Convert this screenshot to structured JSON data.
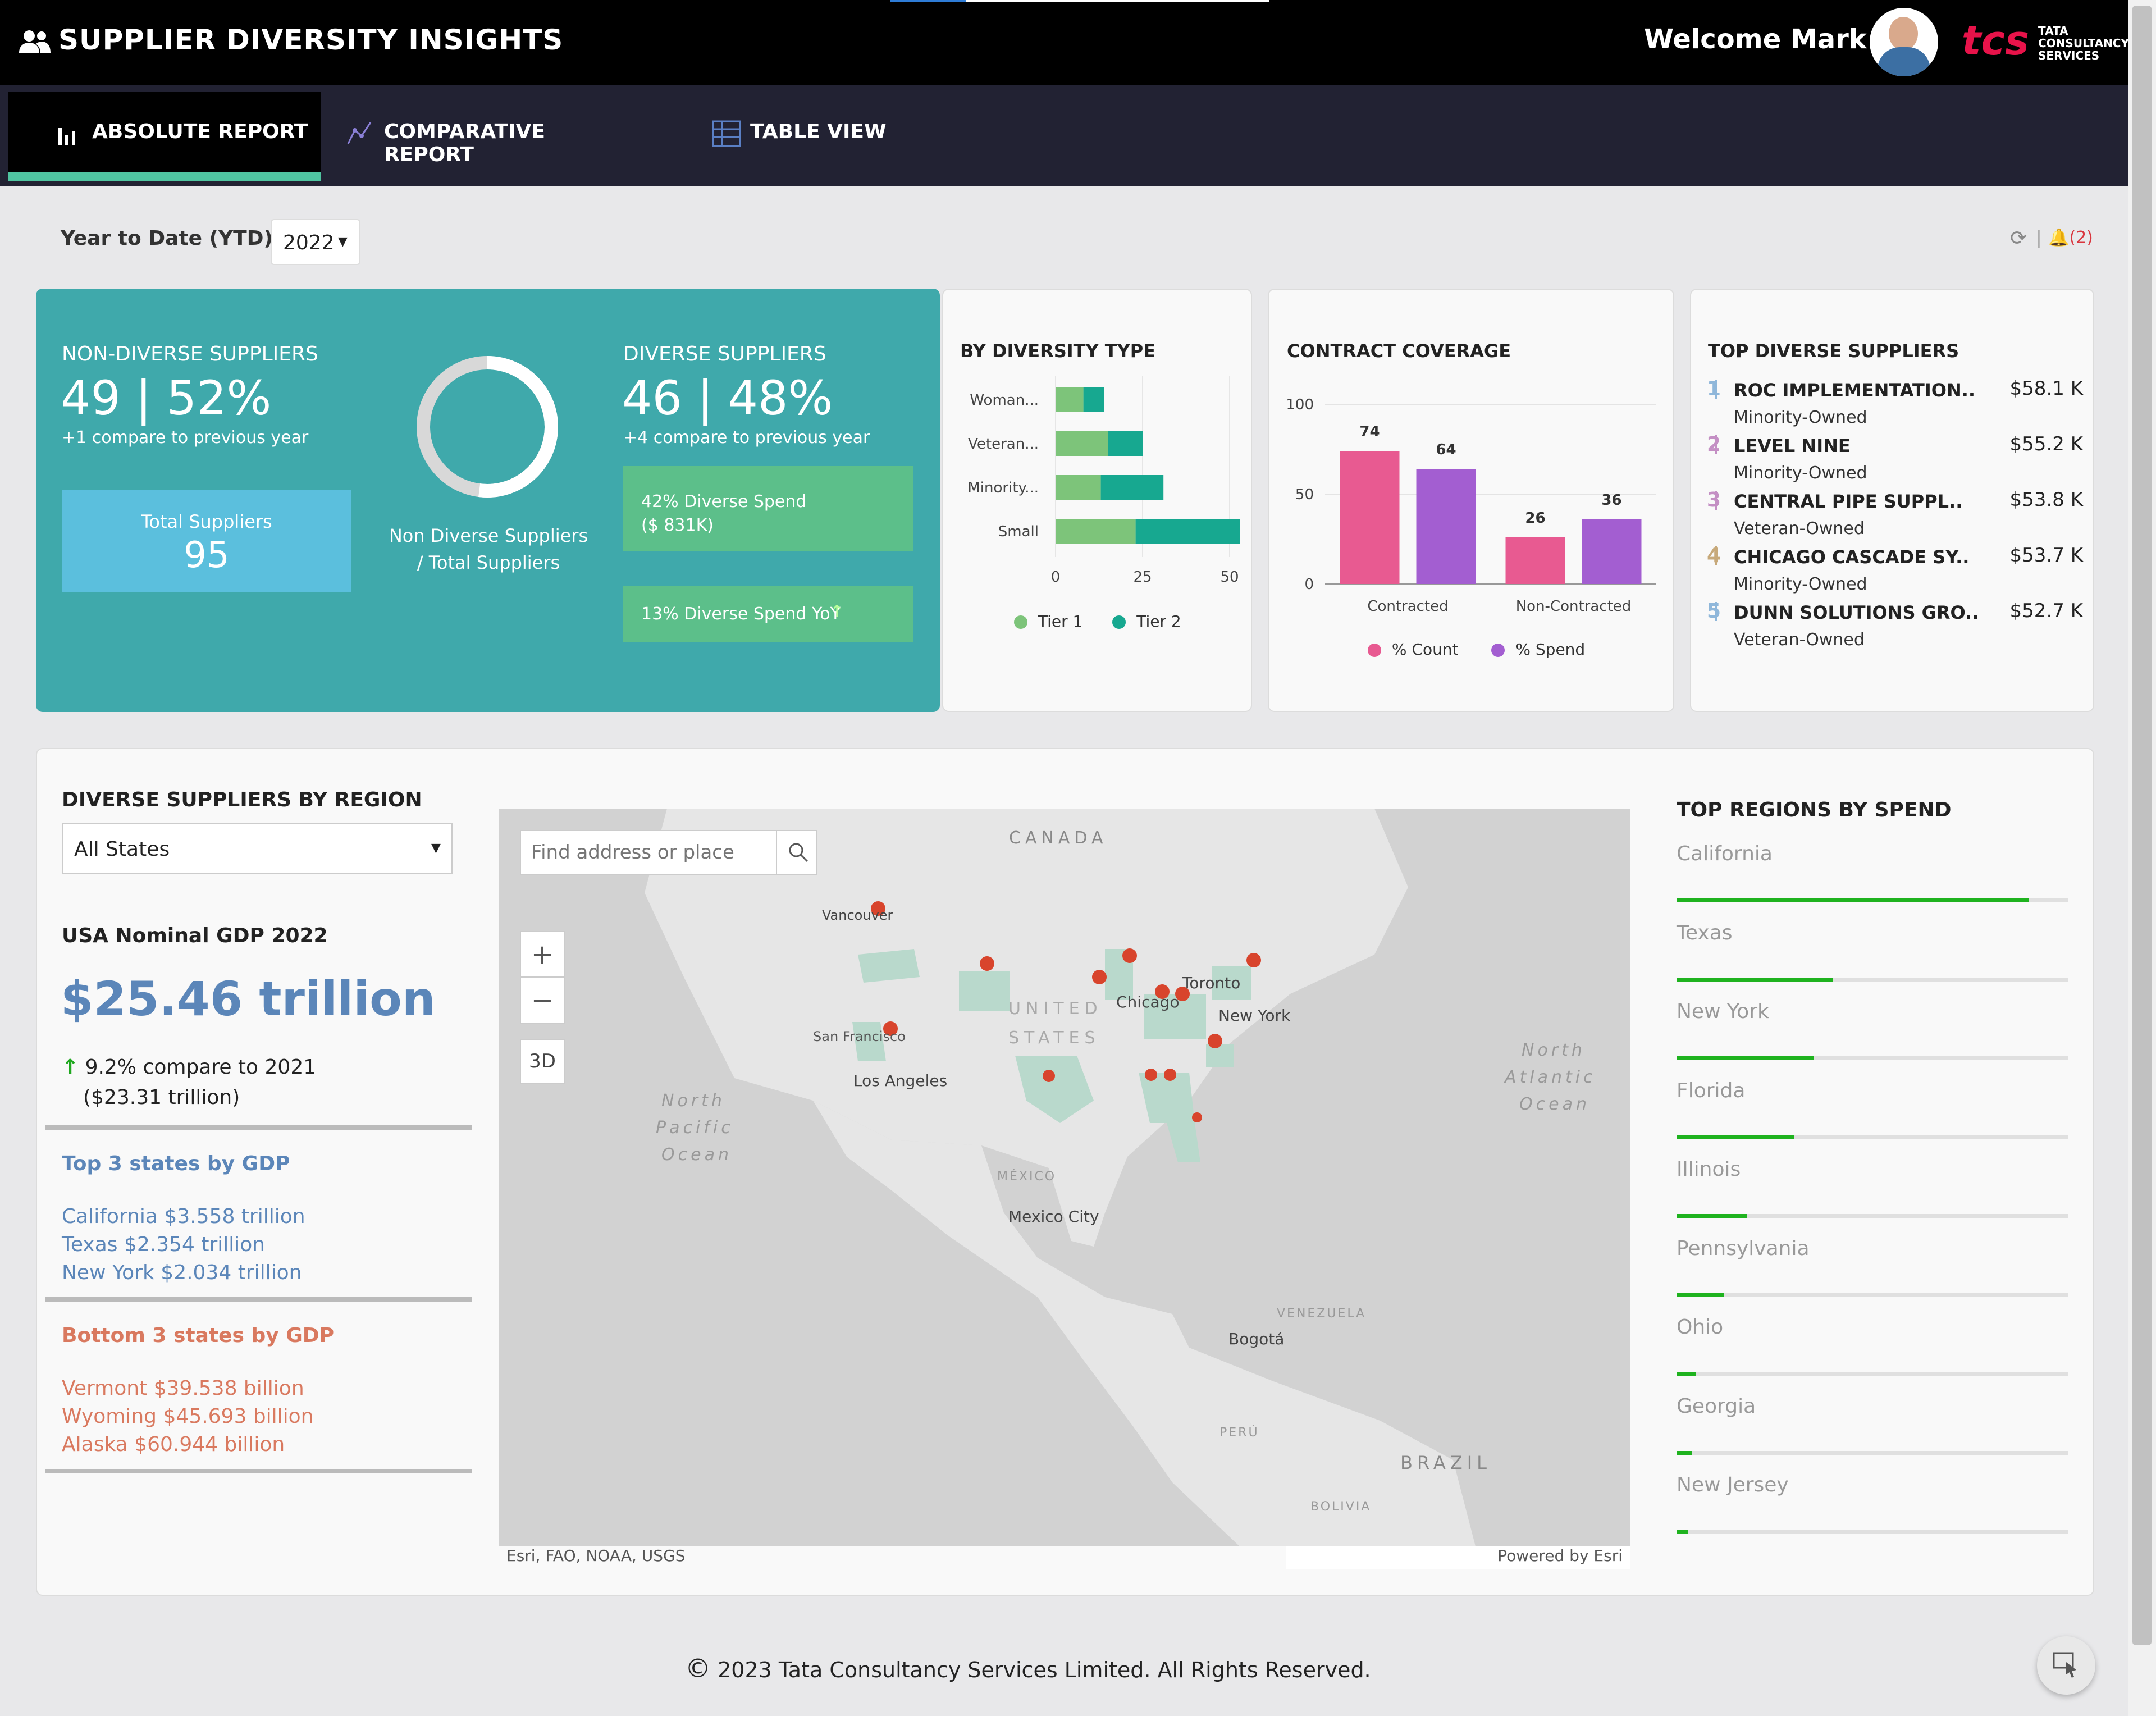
{
  "app": {
    "title": "SUPPLIER DIVERSITY INSIGHTS",
    "welcome": "Welcome Mark",
    "logo_text": "TATA CONSULTANCY SERVICES",
    "logo_mark": "tcs"
  },
  "tabs": [
    {
      "label": "ABSOLUTE REPORT",
      "active": true
    },
    {
      "label": "COMPARATIVE REPORT",
      "active": false
    },
    {
      "label": "TABLE VIEW",
      "active": false
    }
  ],
  "filter": {
    "label": "Year to Date (YTD) :",
    "value": "2022",
    "alerts": "(2)"
  },
  "summary": {
    "non_diverse": {
      "title": "NON-DIVERSE SUPPLIERS",
      "value": "49 | 52%",
      "compare": "+1 compare to previous year"
    },
    "total": {
      "label": "Total Suppliers",
      "value": "95"
    },
    "donut_label": "Non Diverse Suppliers / Total Suppliers",
    "donut_fraction": 0.52,
    "diverse": {
      "title": "DIVERSE SUPPLIERS",
      "value": "46 | 48%",
      "compare": "+4 compare to previous year"
    },
    "spend": {
      "line1": "42% Diverse Spend",
      "line2": "($ 831K)"
    },
    "yoy": "13% Diverse Spend YoY"
  },
  "diversity_type": {
    "title": "BY DIVERSITY TYPE",
    "legend": [
      "Tier 1",
      "Tier 2"
    ]
  },
  "contract": {
    "title": "CONTRACT COVERAGE",
    "legend": [
      "% Count",
      "% Spend"
    ]
  },
  "chart_data": [
    {
      "type": "bar",
      "orientation": "horizontal",
      "stacked": true,
      "title": "BY DIVERSITY TYPE",
      "categories": [
        "Woman...",
        "Veteran...",
        "Minority...",
        "Small"
      ],
      "series": [
        {
          "name": "Tier 1",
          "values": [
            8,
            15,
            13,
            23
          ]
        },
        {
          "name": "Tier 2",
          "values": [
            6,
            10,
            18,
            30
          ]
        }
      ],
      "xlim": [
        0,
        50
      ],
      "xticks": [
        0,
        25,
        50
      ],
      "colors": [
        "#7dc47a",
        "#17a890"
      ]
    },
    {
      "type": "bar",
      "title": "CONTRACT COVERAGE",
      "categories": [
        "Contracted",
        "Non-Contracted"
      ],
      "series": [
        {
          "name": "% Count",
          "values": [
            74,
            26
          ]
        },
        {
          "name": "% Spend",
          "values": [
            64,
            36
          ]
        }
      ],
      "ylim": [
        0,
        100
      ],
      "yticks": [
        0,
        50,
        100
      ],
      "colors": [
        "#e85a91",
        "#a35ed1"
      ]
    }
  ],
  "top_suppliers": {
    "title": "TOP DIVERSE SUPPLIERS",
    "items": [
      {
        "rank": "1",
        "name": "ROC IMPLEMENTATION..",
        "type": "Minority-Owned",
        "value": "$58.1 K",
        "color": "#8fb7da"
      },
      {
        "rank": "2",
        "name": "LEVEL NINE",
        "type": "Minority-Owned",
        "value": "$55.2 K",
        "color": "#c48fc4"
      },
      {
        "rank": "3",
        "name": "CENTRAL PIPE SUPPL..",
        "type": "Veteran-Owned",
        "value": "$53.8 K",
        "color": "#c48fc4"
      },
      {
        "rank": "4",
        "name": "CHICAGO CASCADE SY..",
        "type": "Minority-Owned",
        "value": "$53.7 K",
        "color": "#c7a97a"
      },
      {
        "rank": "5",
        "name": "DUNN SOLUTIONS GRO..",
        "type": "Veteran-Owned",
        "value": "$52.7 K",
        "color": "#8fb7da"
      }
    ]
  },
  "region": {
    "title": "DIVERSE SUPPLIERS BY REGION",
    "select": "All States",
    "gdp_title": "USA Nominal GDP 2022",
    "gdp_value": "$25.46 trillion",
    "gdp_compare": "9.2% compare to 2021",
    "gdp_prev": "($23.31 trillion)",
    "top_title": "Top 3 states by GDP",
    "top": [
      "California $3.558 trillion",
      "Texas $2.354 trillion",
      "New York $2.034 trillion"
    ],
    "bottom_title": "Bottom 3 states by GDP",
    "bottom": [
      "Vermont $39.538 billion",
      "Wyoming $45.693 billion",
      "Alaska $60.944 billion"
    ]
  },
  "map": {
    "search_placeholder": "Find address or place",
    "btn_3d": "3D",
    "attribution": "Esri, FAO, NOAA, USGS",
    "powered": "Powered by Esri",
    "labels": {
      "canada": "CANADA",
      "us1": "UNITED",
      "us2": "STATES",
      "mexico": "MÉXICO",
      "vancouver": "Vancouver",
      "sf": "San Francisco",
      "la": "Los Angeles",
      "chicago": "Chicago",
      "toronto": "Toronto",
      "ny": "New York",
      "mexico_city": "Mexico City",
      "venezuela": "VENEZUELA",
      "bogota": "Bogotá",
      "peru": "PERÚ",
      "bolivia": "BOLIVIA",
      "brazil": "BRAZIL",
      "pac1": "North",
      "pac2": "Pacific",
      "pac3": "Ocean",
      "atl1": "North",
      "atl2": "Atlantic",
      "atl3": "Ocean"
    }
  },
  "top_regions": {
    "title": "TOP REGIONS BY SPEND",
    "items": [
      {
        "name": "California",
        "fraction": 0.9
      },
      {
        "name": "Texas",
        "fraction": 0.4
      },
      {
        "name": "New York",
        "fraction": 0.35
      },
      {
        "name": "Florida",
        "fraction": 0.3
      },
      {
        "name": "Illinois",
        "fraction": 0.18
      },
      {
        "name": "Pennsylvania",
        "fraction": 0.12
      },
      {
        "name": "Ohio",
        "fraction": 0.05
      },
      {
        "name": "Georgia",
        "fraction": 0.04
      },
      {
        "name": "New Jersey",
        "fraction": 0.03
      }
    ]
  },
  "footer": "2023 Tata Consultancy Services Limited. All Rights Reserved.",
  "colors": {
    "teal": "#3fa9ab",
    "tabactive": "#000000",
    "underline": "#4fc4a0",
    "sky": "#5bbfdd",
    "spendgreen": "#5cbf8a",
    "navy": "#222233"
  }
}
